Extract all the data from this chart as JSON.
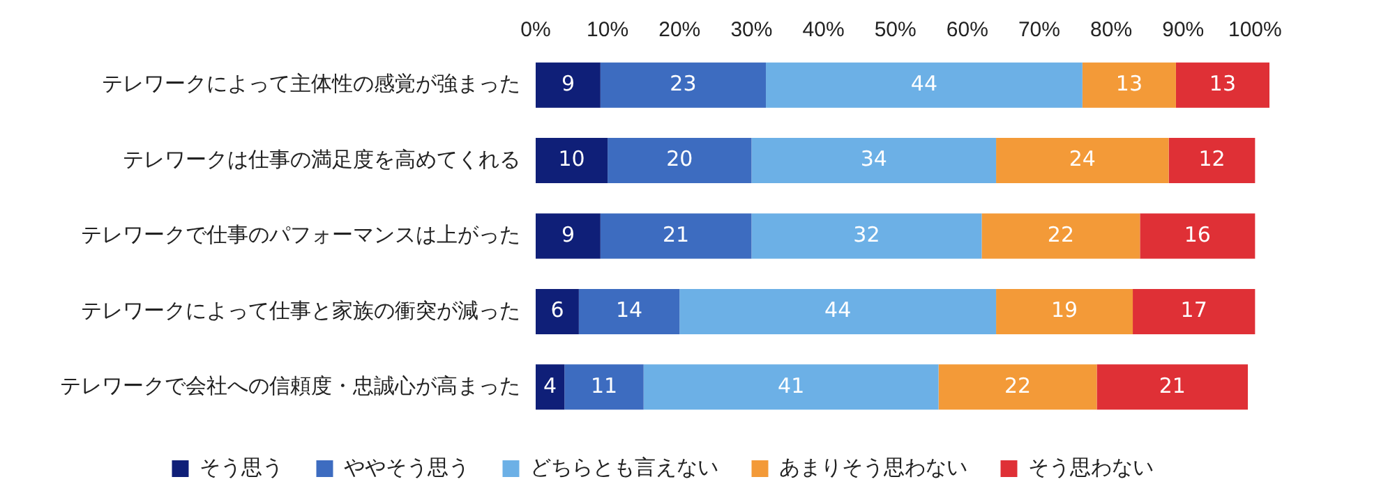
{
  "chart_data": {
    "type": "bar",
    "orientation": "horizontal",
    "stacked": true,
    "data_labels": true,
    "legend": "bottom",
    "grid": false,
    "categories": [
      "テレワークによって主体性の感覚が強まった",
      "テレワークは仕事の満足度を高めてくれる",
      "テレワークで仕事のパフォーマンスは上がった",
      "テレワークによって仕事と家族の衝突が減った",
      "テレワークで会社への信頼度・忠誠心が高まった"
    ],
    "xlim": [
      0,
      102
    ],
    "xticks": [
      {
        "value": 0,
        "label": "0%"
      },
      {
        "value": 10,
        "label": "10%"
      },
      {
        "value": 20,
        "label": "20%"
      },
      {
        "value": 30,
        "label": "30%"
      },
      {
        "value": 40,
        "label": "40%"
      },
      {
        "value": 50,
        "label": "50%"
      },
      {
        "value": 60,
        "label": "60%"
      },
      {
        "value": 70,
        "label": "70%"
      },
      {
        "value": 80,
        "label": "80%"
      },
      {
        "value": 90,
        "label": "90%"
      },
      {
        "value": 100,
        "label": "100%"
      }
    ],
    "series": [
      {
        "name": "そう思う",
        "color": "#0f1f78",
        "values": [
          9,
          10,
          9,
          6,
          4
        ]
      },
      {
        "name": "ややそう思う",
        "color": "#3d6cc0",
        "values": [
          23,
          20,
          21,
          14,
          11
        ]
      },
      {
        "name": "どちらとも言えない",
        "color": "#6cb0e6",
        "values": [
          44,
          34,
          32,
          44,
          41
        ]
      },
      {
        "name": "あまりそう思わない",
        "color": "#f39a38",
        "values": [
          13,
          24,
          22,
          19,
          22
        ]
      },
      {
        "name": "そう思わない",
        "color": "#df3036",
        "values": [
          13,
          12,
          16,
          17,
          21
        ]
      }
    ]
  }
}
